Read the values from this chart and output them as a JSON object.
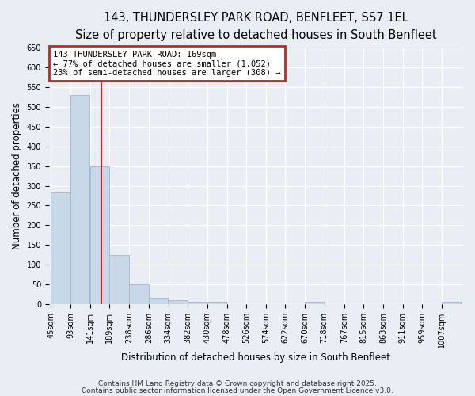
{
  "title_line1": "143, THUNDERSLEY PARK ROAD, BENFLEET, SS7 1EL",
  "title_line2": "Size of property relative to detached houses in South Benfleet",
  "xlabel": "Distribution of detached houses by size in South Benfleet",
  "ylabel": "Number of detached properties",
  "bar_color": "#c8d8e8",
  "bar_edgecolor": "#a8bece",
  "background_color": "#e8eef4",
  "grid_color": "white",
  "bins": [
    45,
    93,
    141,
    189,
    238,
    286,
    334,
    382,
    430,
    478,
    526,
    574,
    622,
    670,
    718,
    767,
    815,
    863,
    911,
    959,
    1007
  ],
  "counts": [
    283,
    530,
    350,
    125,
    50,
    15,
    10,
    5,
    5,
    0,
    0,
    0,
    0,
    5,
    0,
    0,
    0,
    0,
    0,
    0,
    5
  ],
  "vline_x": 169,
  "vline_color": "#cc2222",
  "annotation_text": "143 THUNDERSLEY PARK ROAD: 169sqm\n← 77% of detached houses are smaller (1,052)\n23% of semi-detached houses are larger (308) →",
  "annotation_box_color": "#cc2222",
  "ylim": [
    0,
    650
  ],
  "yticks": [
    0,
    50,
    100,
    150,
    200,
    250,
    300,
    350,
    400,
    450,
    500,
    550,
    600,
    650
  ],
  "footnote1": "Contains HM Land Registry data © Crown copyright and database right 2025.",
  "footnote2": "Contains public sector information licensed under the Open Government Licence v3.0.",
  "title_fontsize": 10.5,
  "subtitle_fontsize": 9.5,
  "axis_fontsize": 8.5,
  "tick_fontsize": 7,
  "annot_fontsize": 7.5
}
